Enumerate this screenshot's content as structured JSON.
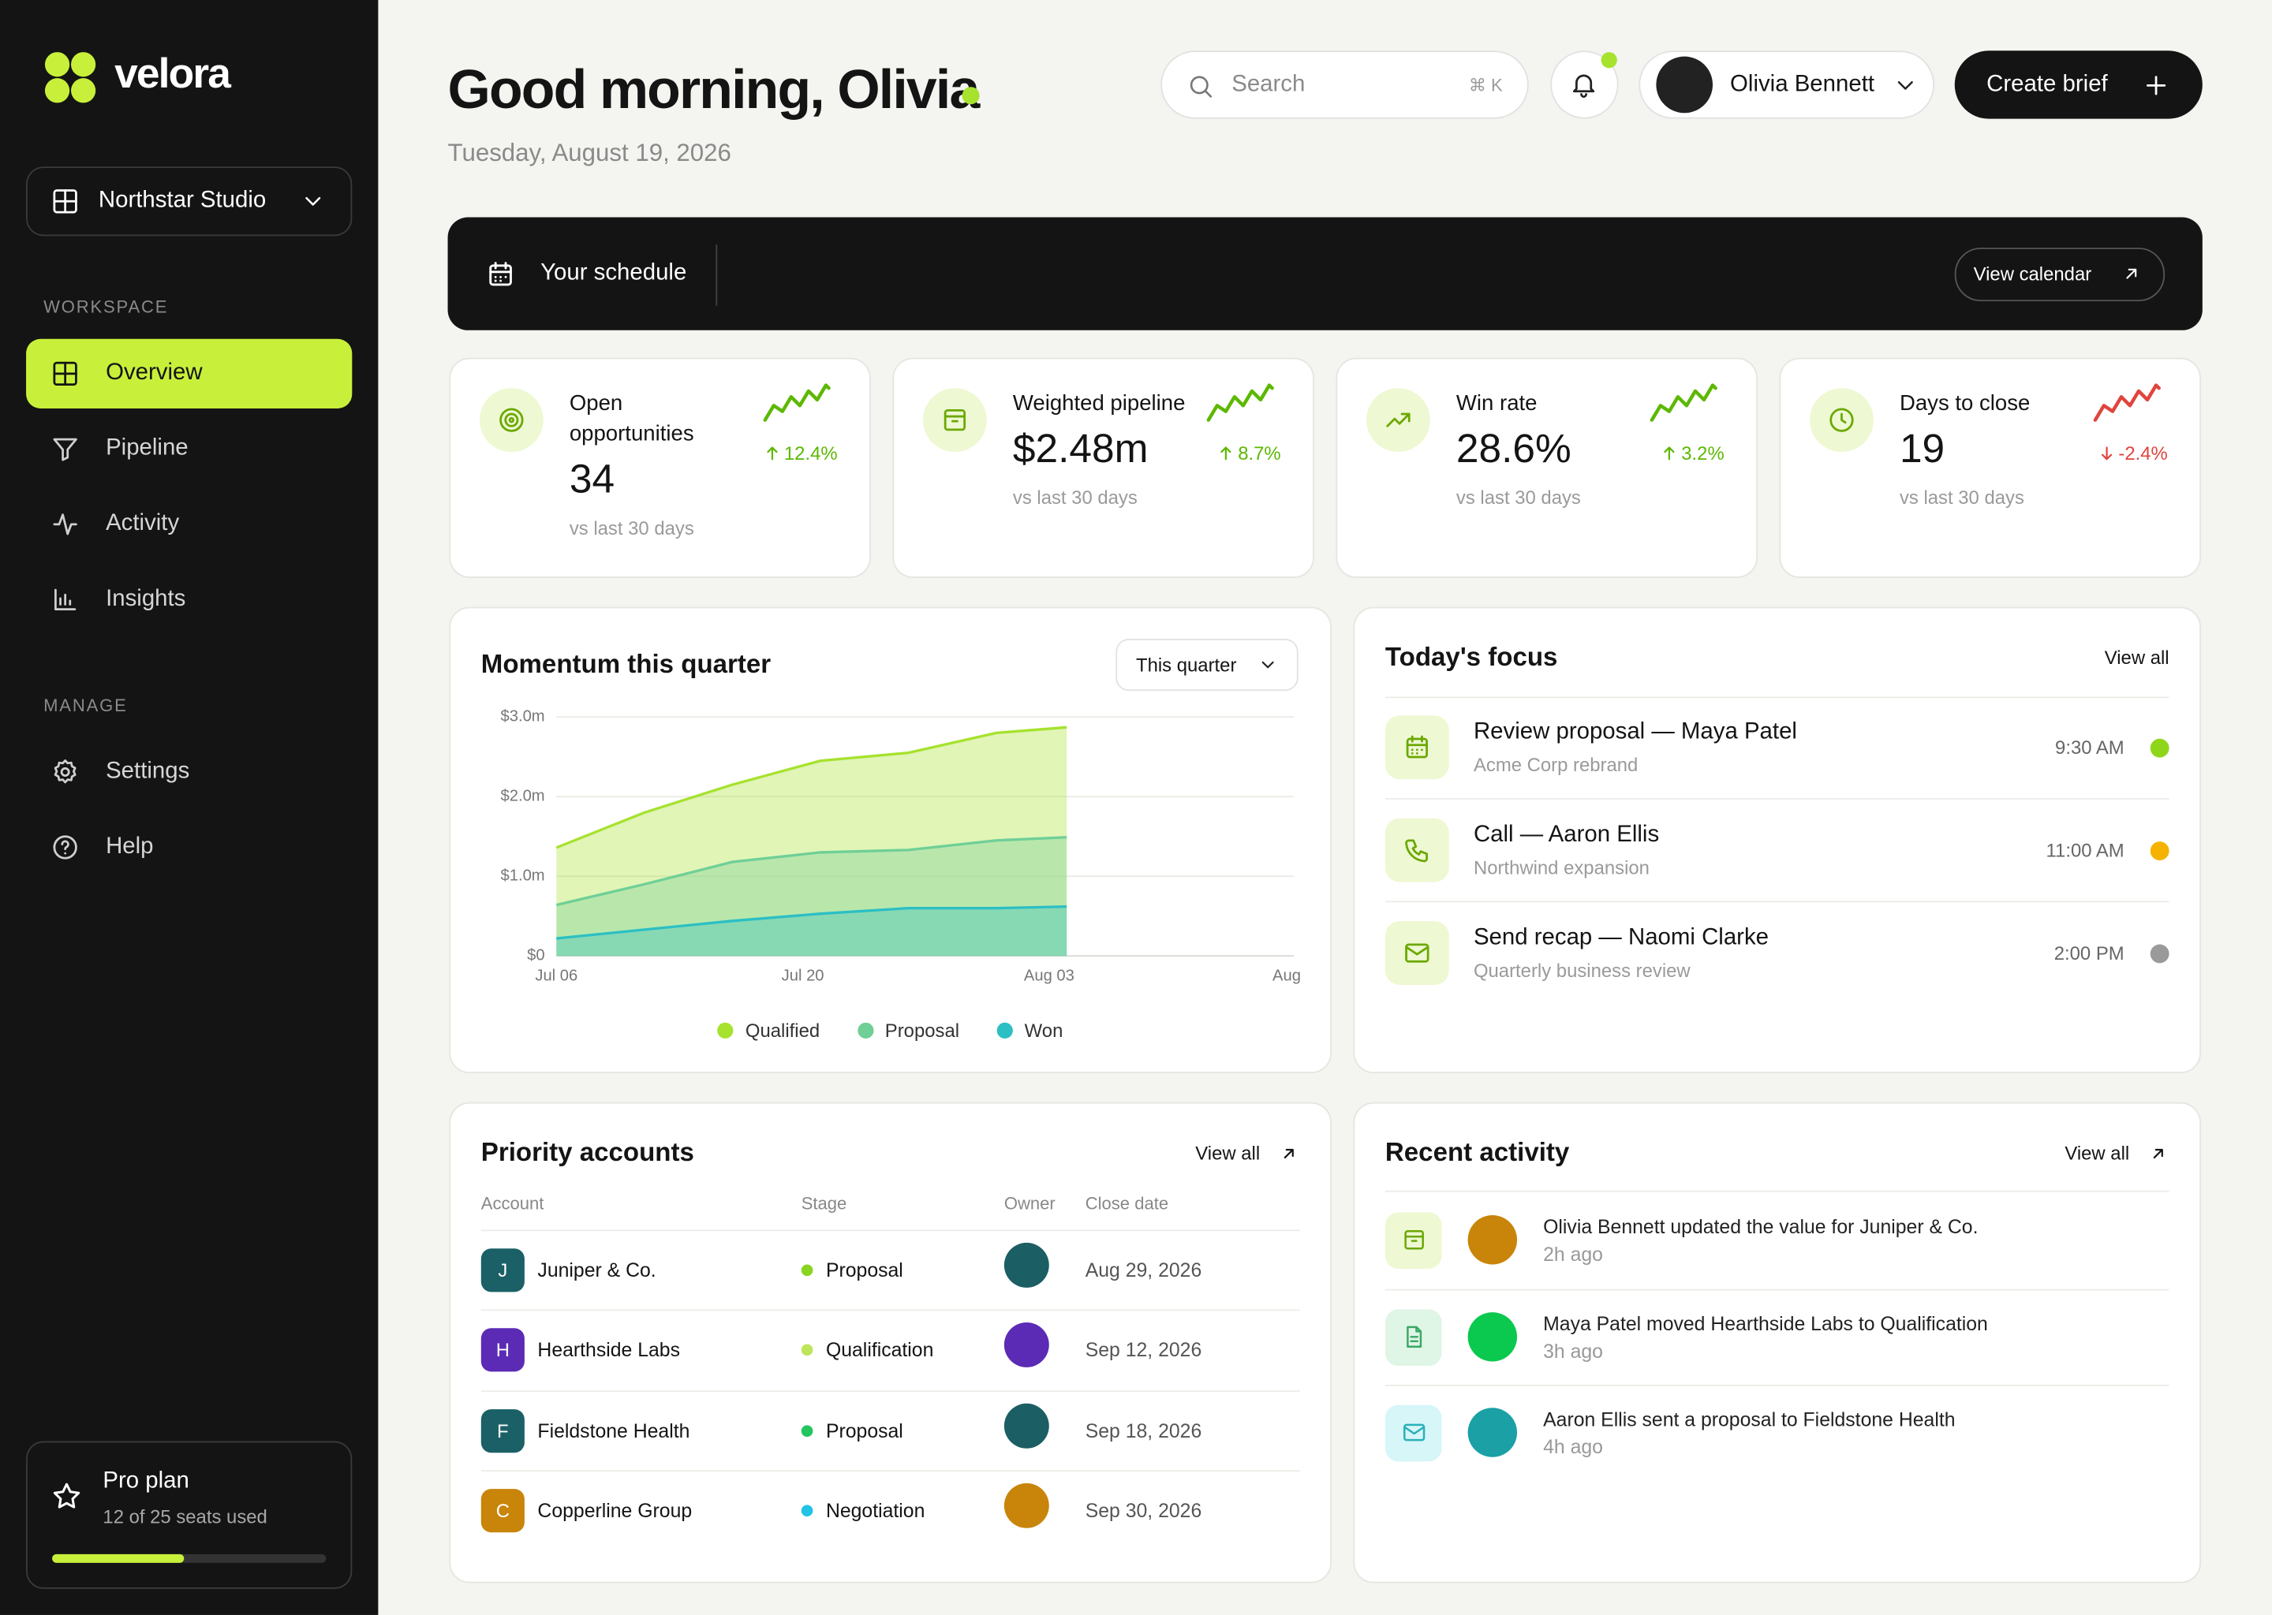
{
  "sidebar": {
    "brand": "velora",
    "workspace": "Northstar Studio",
    "sections": [
      {
        "label": "WORKSPACE",
        "items": [
          "Overview",
          "Pipeline",
          "Activity",
          "Insights"
        ]
      },
      {
        "label": "MANAGE",
        "items": [
          "Settings",
          "Help"
        ]
      }
    ],
    "plan": {
      "name": "Pro plan",
      "seats": "12 of 25 seats used"
    }
  },
  "header": {
    "greeting": "Good morning, Olivia",
    "date": "Tuesday, August 19, 2026",
    "search": "Search",
    "shortcut": "⌘ K",
    "user": "Olivia Bennett",
    "cta": "Create brief"
  },
  "schedule": {
    "title": "Your schedule",
    "action": "View calendar"
  },
  "kpis": [
    {
      "label": "Open opportunities",
      "value": "34",
      "change": "12.4%",
      "note": "vs last 30 days"
    },
    {
      "label": "Weighted pipeline",
      "value": "$2.48m",
      "change": "8.7%",
      "note": "vs last 30 days"
    },
    {
      "label": "Win rate",
      "value": "28.6%",
      "change": "3.2%",
      "note": "vs last 30 days"
    },
    {
      "label": "Days to close",
      "value": "19",
      "change": "-2.4%",
      "note": "vs last 30 days"
    }
  ],
  "chart_data": {
    "type": "area",
    "title": "Momentum this quarter",
    "filter": "This quarter",
    "x": [
      0,
      5,
      10,
      15,
      20,
      25,
      29
    ],
    "xlim": [
      0,
      41.5
    ],
    "xticks": [
      {
        "value": 0,
        "label": "Jul 06"
      },
      {
        "value": 14,
        "label": "Jul 20"
      },
      {
        "value": 28,
        "label": "Aug 03"
      },
      {
        "value": 41.5,
        "label": "Aug"
      }
    ],
    "ylim": [
      0,
      3
    ],
    "yticks": [
      {
        "value": 0,
        "label": "$0"
      },
      {
        "value": 1,
        "label": "$1.0m"
      },
      {
        "value": 2,
        "label": "$2.0m"
      },
      {
        "value": 3,
        "label": "$3.0m"
      }
    ],
    "grid": true,
    "legend": "bottom",
    "series": [
      {
        "name": "Qualified",
        "color": "#a6e22e",
        "values": [
          1.36,
          1.8,
          2.15,
          2.45,
          2.55,
          2.8,
          2.87
        ]
      },
      {
        "name": "Proposal",
        "color": "#6fcf97",
        "values": [
          0.64,
          0.9,
          1.18,
          1.3,
          1.33,
          1.45,
          1.49
        ]
      },
      {
        "name": "Won",
        "color": "#2cbfc4",
        "values": [
          0.22,
          0.33,
          0.44,
          0.53,
          0.6,
          0.6,
          0.62
        ]
      }
    ]
  },
  "focus": {
    "title": "Today's focus",
    "action": "View all",
    "items": [
      {
        "title": "Review proposal — Maya Patel",
        "subtitle": "Acme Corp rebrand",
        "time": "9:30 AM",
        "color": "#8fd61a"
      },
      {
        "title": "Call — Aaron Ellis",
        "subtitle": "Northwind expansion",
        "time": "11:00 AM",
        "color": "#f5b300"
      },
      {
        "title": "Send recap — Naomi Clarke",
        "subtitle": "Quarterly business review",
        "time": "2:00 PM",
        "color": "#9a9a9a"
      }
    ]
  },
  "accounts": {
    "title": "Priority accounts",
    "action": "View all",
    "columns": [
      "Account",
      "Stage",
      "Owner",
      "Close date"
    ],
    "rows": [
      {
        "initial": "J",
        "name": "Juniper & Co.",
        "stage": "Proposal",
        "close": "Aug 29, 2026",
        "color": "#1b6066",
        "stage_color": "#8ad51f",
        "owner_color": "#1b5e63"
      },
      {
        "initial": "H",
        "name": "Hearthside Labs",
        "stage": "Qualification",
        "close": "Sep 12, 2026",
        "color": "#5b2bb5",
        "stage_color": "#bde65a",
        "owner_color": "#5b2bb5"
      },
      {
        "initial": "F",
        "name": "Fieldstone Health",
        "stage": "Proposal",
        "close": "Sep 18, 2026",
        "color": "#1b6066",
        "stage_color": "#22c55e",
        "owner_color": "#1b5e63"
      },
      {
        "initial": "C",
        "name": "Copperline Group",
        "stage": "Negotiation",
        "close": "Sep 30, 2026",
        "color": "#c8850a",
        "stage_color": "#22c3e6",
        "owner_color": "#c8850a"
      }
    ]
  },
  "activity": {
    "title": "Recent activity",
    "action": "View all",
    "items": [
      {
        "text": "Olivia Bennett updated the value for Juniper & Co.",
        "time": "2h ago",
        "color": "#c8850a"
      },
      {
        "text": "Maya Patel moved Hearthside Labs to Qualification",
        "time": "3h ago",
        "color": "#0bc94f"
      },
      {
        "text": "Aaron Ellis sent a proposal to Fieldstone Health",
        "time": "4h ago",
        "color": "#1ba0a6"
      }
    ]
  }
}
